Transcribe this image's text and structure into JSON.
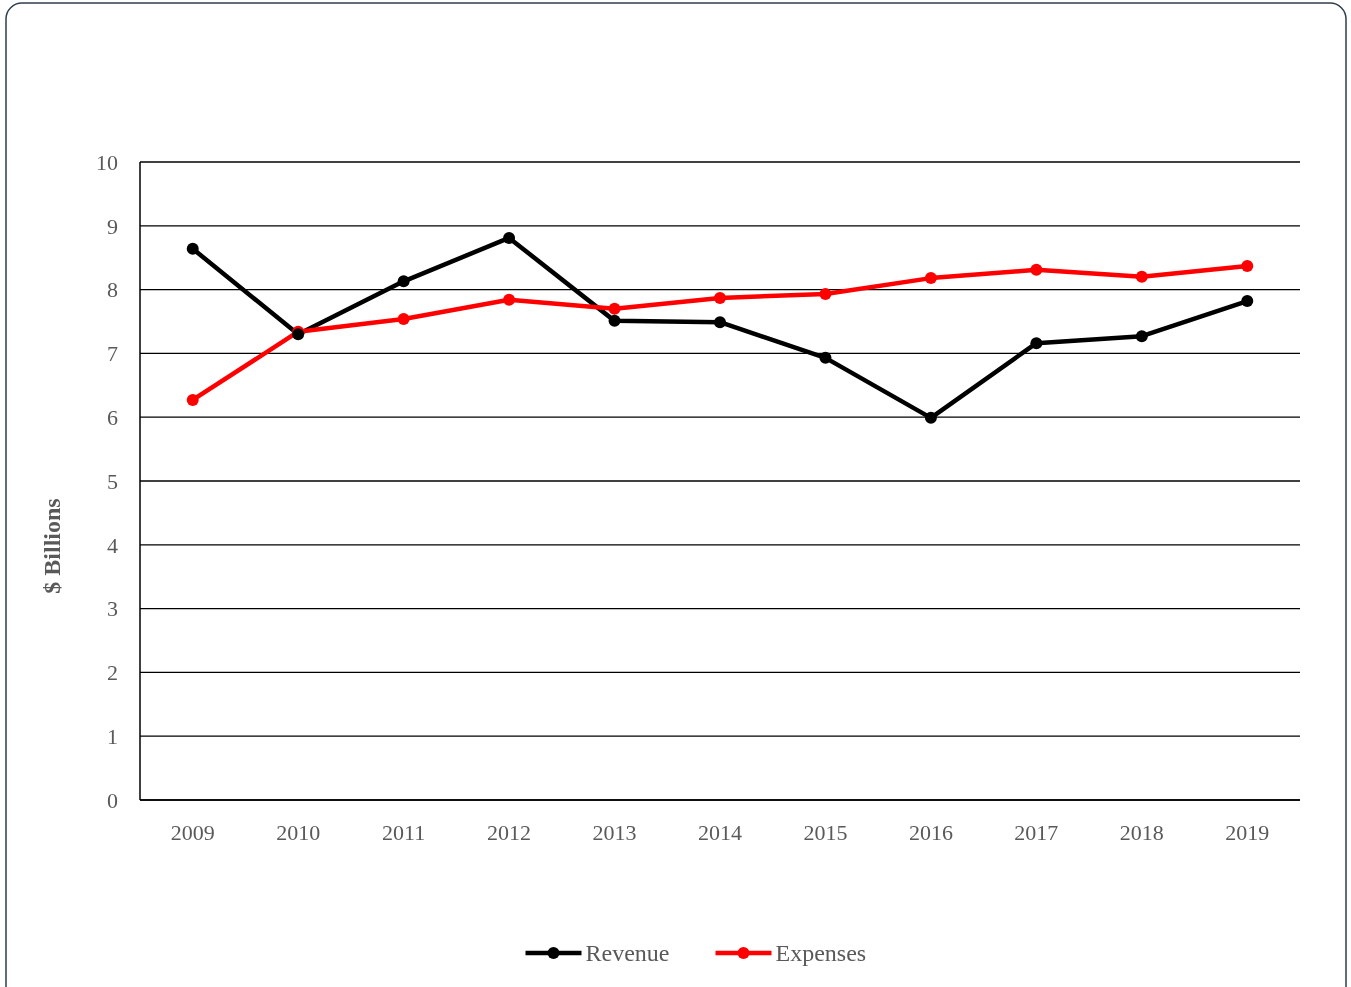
{
  "chart_data": {
    "type": "line",
    "ylabel": "$ Billions",
    "categories": [
      "2009",
      "2010",
      "2011",
      "2012",
      "2013",
      "2014",
      "2015",
      "2016",
      "2017",
      "2018",
      "2019"
    ],
    "series": [
      {
        "name": "Revenue",
        "color": "#000000",
        "values": [
          8.64,
          7.3,
          8.13,
          8.81,
          7.51,
          7.49,
          6.93,
          5.99,
          7.16,
          7.27,
          7.82
        ]
      },
      {
        "name": "Expenses",
        "color": "#ff0000",
        "values": [
          6.27,
          7.34,
          7.54,
          7.84,
          7.7,
          7.87,
          7.93,
          8.18,
          8.31,
          8.2,
          8.37
        ]
      }
    ],
    "ylim": [
      0,
      10
    ],
    "yticks": [
      0,
      1,
      2,
      3,
      4,
      5,
      6,
      7,
      8,
      9,
      10
    ],
    "grid": "y",
    "legend": "bottom",
    "marker": "circle",
    "line_style": "solid"
  }
}
